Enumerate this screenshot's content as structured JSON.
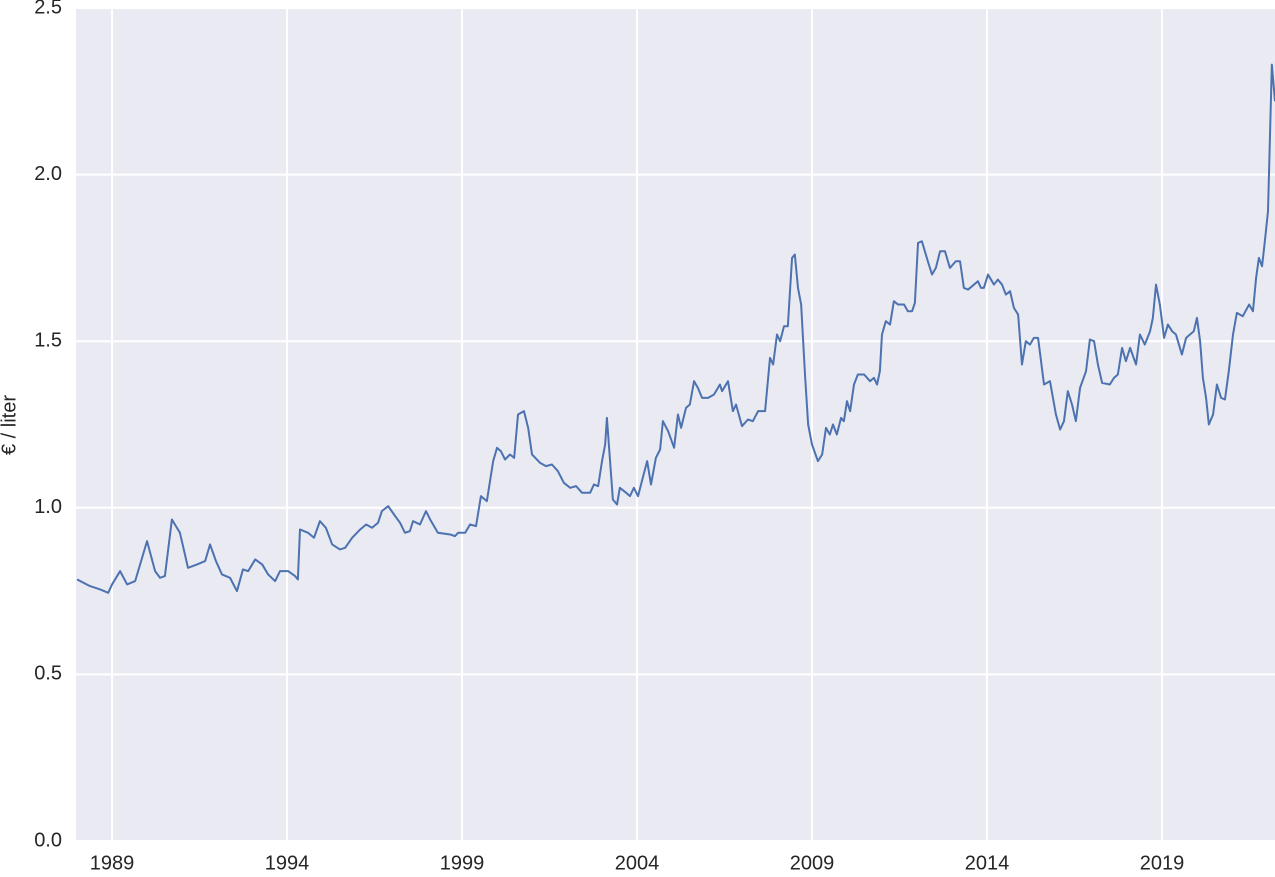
{
  "chart_data": {
    "type": "line",
    "ylabel": "€ / liter",
    "xlim": [
      1987.97,
      2022.23
    ],
    "ylim": [
      0,
      2.5
    ],
    "xticks": [
      1989,
      1994,
      1999,
      2004,
      2009,
      2014,
      2019
    ],
    "yticks": [
      {
        "value": 0,
        "label": "0.0"
      },
      0.5,
      {
        "value": 1,
        "label": "1.0"
      },
      1.5,
      {
        "value": 2,
        "label": "2.0"
      },
      2.5
    ],
    "grid": true,
    "x": [
      1988.0,
      1988.37,
      1988.66,
      1988.89,
      1989.0,
      1989.23,
      1989.43,
      1989.66,
      1990.0,
      1990.23,
      1990.37,
      1990.51,
      1990.71,
      1990.94,
      1991.17,
      1991.43,
      1991.66,
      1991.8,
      1991.97,
      1992.14,
      1992.37,
      1992.57,
      1992.74,
      1992.89,
      1993.09,
      1993.29,
      1993.46,
      1993.66,
      1993.8,
      1994.03,
      1994.23,
      1994.31,
      1994.37,
      1994.6,
      1994.77,
      1994.94,
      1995.11,
      1995.29,
      1995.51,
      1995.66,
      1995.86,
      1996.09,
      1996.26,
      1996.43,
      1996.6,
      1996.71,
      1996.89,
      1997.09,
      1997.23,
      1997.37,
      1997.51,
      1997.6,
      1997.8,
      1997.97,
      1998.09,
      1998.31,
      1998.66,
      1998.8,
      1998.89,
      1999.09,
      1999.23,
      1999.4,
      1999.54,
      1999.71,
      1999.89,
      2000.0,
      2000.11,
      2000.23,
      2000.37,
      2000.49,
      2000.6,
      2000.77,
      2000.89,
      2001.0,
      2001.23,
      2001.4,
      2001.57,
      2001.74,
      2001.91,
      2002.09,
      2002.26,
      2002.43,
      2002.66,
      2002.77,
      2002.89,
      2003.0,
      2003.09,
      2003.14,
      2003.23,
      2003.31,
      2003.43,
      2003.51,
      2003.69,
      2003.8,
      2003.91,
      2004.03,
      2004.14,
      2004.29,
      2004.4,
      2004.54,
      2004.66,
      2004.74,
      2004.89,
      2005.06,
      2005.17,
      2005.26,
      2005.4,
      2005.51,
      2005.63,
      2005.74,
      2005.86,
      2006.03,
      2006.2,
      2006.37,
      2006.43,
      2006.6,
      2006.74,
      2006.83,
      2007.0,
      2007.17,
      2007.31,
      2007.46,
      2007.66,
      2007.8,
      2007.89,
      2008.0,
      2008.09,
      2008.2,
      2008.31,
      2008.43,
      2008.51,
      2008.6,
      2008.69,
      2008.8,
      2008.89,
      2009.0,
      2009.17,
      2009.29,
      2009.4,
      2009.51,
      2009.6,
      2009.71,
      2009.83,
      2009.91,
      2010.0,
      2010.09,
      2010.2,
      2010.31,
      2010.49,
      2010.66,
      2010.77,
      2010.86,
      2010.94,
      2011.0,
      2011.11,
      2011.23,
      2011.34,
      2011.46,
      2011.63,
      2011.74,
      2011.86,
      2011.94,
      2012.03,
      2012.14,
      2012.31,
      2012.43,
      2012.54,
      2012.66,
      2012.8,
      2012.94,
      2013.11,
      2013.23,
      2013.34,
      2013.46,
      2013.63,
      2013.74,
      2013.83,
      2013.91,
      2014.03,
      2014.2,
      2014.31,
      2014.43,
      2014.54,
      2014.66,
      2014.77,
      2014.89,
      2015.0,
      2015.11,
      2015.23,
      2015.34,
      2015.46,
      2015.63,
      2015.8,
      2015.97,
      2016.09,
      2016.2,
      2016.31,
      2016.43,
      2016.54,
      2016.66,
      2016.83,
      2016.94,
      2017.06,
      2017.17,
      2017.29,
      2017.51,
      2017.63,
      2017.74,
      2017.86,
      2017.97,
      2018.09,
      2018.26,
      2018.37,
      2018.51,
      2018.66,
      2018.74,
      2018.83,
      2018.94,
      2019.06,
      2019.17,
      2019.29,
      2019.4,
      2019.57,
      2019.69,
      2019.8,
      2019.91,
      2020.0,
      2020.09,
      2020.17,
      2020.26,
      2020.34,
      2020.46,
      2020.57,
      2020.69,
      2020.8,
      2020.91,
      2021.03,
      2021.14,
      2021.31,
      2021.49,
      2021.6,
      2021.69,
      2021.77,
      2021.86,
      2021.94,
      2022.03,
      2022.14,
      2022.23
    ],
    "series": [
      {
        "color": "#4c72b0",
        "values": [
          0.785,
          0.765,
          0.755,
          0.745,
          0.77,
          0.81,
          0.77,
          0.78,
          0.9,
          0.81,
          0.79,
          0.795,
          0.965,
          0.925,
          0.82,
          0.83,
          0.84,
          0.89,
          0.84,
          0.8,
          0.79,
          0.75,
          0.815,
          0.81,
          0.845,
          0.83,
          0.8,
          0.78,
          0.81,
          0.81,
          0.795,
          0.785,
          0.935,
          0.925,
          0.91,
          0.96,
          0.94,
          0.89,
          0.875,
          0.88,
          0.91,
          0.935,
          0.95,
          0.94,
          0.955,
          0.99,
          1.005,
          0.975,
          0.955,
          0.925,
          0.93,
          0.96,
          0.95,
          0.99,
          0.965,
          0.925,
          0.92,
          0.915,
          0.925,
          0.925,
          0.95,
          0.945,
          1.035,
          1.02,
          1.14,
          1.18,
          1.17,
          1.145,
          1.16,
          1.15,
          1.28,
          1.29,
          1.24,
          1.16,
          1.135,
          1.125,
          1.13,
          1.11,
          1.075,
          1.06,
          1.065,
          1.045,
          1.045,
          1.07,
          1.065,
          1.14,
          1.19,
          1.27,
          1.14,
          1.025,
          1.01,
          1.06,
          1.045,
          1.035,
          1.06,
          1.035,
          1.08,
          1.14,
          1.07,
          1.15,
          1.175,
          1.26,
          1.23,
          1.18,
          1.28,
          1.24,
          1.3,
          1.31,
          1.38,
          1.36,
          1.33,
          1.33,
          1.34,
          1.37,
          1.35,
          1.38,
          1.29,
          1.31,
          1.245,
          1.265,
          1.26,
          1.29,
          1.29,
          1.45,
          1.43,
          1.52,
          1.5,
          1.545,
          1.545,
          1.75,
          1.76,
          1.66,
          1.61,
          1.4,
          1.25,
          1.19,
          1.14,
          1.16,
          1.24,
          1.22,
          1.25,
          1.22,
          1.27,
          1.26,
          1.32,
          1.29,
          1.37,
          1.4,
          1.4,
          1.38,
          1.39,
          1.37,
          1.41,
          1.52,
          1.56,
          1.55,
          1.62,
          1.61,
          1.61,
          1.59,
          1.59,
          1.615,
          1.795,
          1.8,
          1.74,
          1.7,
          1.72,
          1.77,
          1.77,
          1.72,
          1.74,
          1.74,
          1.66,
          1.655,
          1.67,
          1.68,
          1.66,
          1.66,
          1.7,
          1.67,
          1.685,
          1.67,
          1.64,
          1.65,
          1.6,
          1.58,
          1.43,
          1.5,
          1.49,
          1.51,
          1.51,
          1.37,
          1.38,
          1.28,
          1.235,
          1.26,
          1.35,
          1.31,
          1.26,
          1.36,
          1.41,
          1.505,
          1.5,
          1.43,
          1.375,
          1.37,
          1.39,
          1.4,
          1.48,
          1.44,
          1.48,
          1.43,
          1.52,
          1.49,
          1.53,
          1.57,
          1.67,
          1.61,
          1.51,
          1.55,
          1.53,
          1.52,
          1.46,
          1.51,
          1.52,
          1.53,
          1.57,
          1.5,
          1.39,
          1.33,
          1.25,
          1.28,
          1.37,
          1.33,
          1.325,
          1.41,
          1.52,
          1.585,
          1.575,
          1.61,
          1.59,
          1.69,
          1.75,
          1.725,
          1.8,
          1.89,
          2.33,
          2.22
        ]
      }
    ]
  }
}
